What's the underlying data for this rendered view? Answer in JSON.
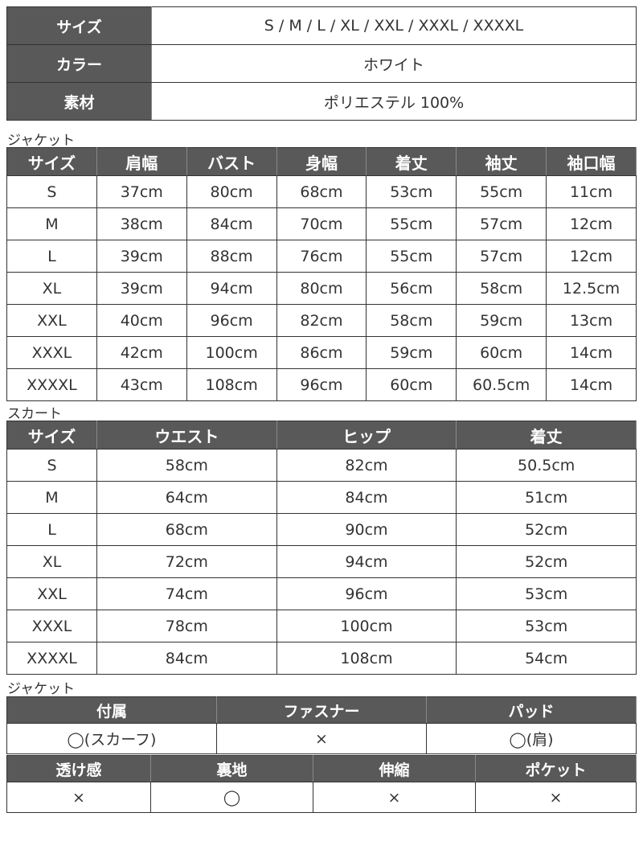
{
  "spec": [
    {
      "label": "サイズ",
      "value": "S / M / L / XL / XXL / XXXL / XXXXL"
    },
    {
      "label": "カラー",
      "value": "ホワイト"
    },
    {
      "label": "素材",
      "value": "ポリエステル 100%"
    }
  ],
  "jacket": {
    "title": "ジャケット",
    "headers": [
      "サイズ",
      "肩幅",
      "バスト",
      "身幅",
      "着丈",
      "袖丈",
      "袖口幅"
    ],
    "rows": [
      [
        "S",
        "37cm",
        "80cm",
        "68cm",
        "53cm",
        "55cm",
        "11cm"
      ],
      [
        "M",
        "38cm",
        "84cm",
        "70cm",
        "55cm",
        "57cm",
        "12cm"
      ],
      [
        "L",
        "39cm",
        "88cm",
        "76cm",
        "55cm",
        "57cm",
        "12cm"
      ],
      [
        "XL",
        "39cm",
        "94cm",
        "80cm",
        "56cm",
        "58cm",
        "12.5cm"
      ],
      [
        "XXL",
        "40cm",
        "96cm",
        "82cm",
        "58cm",
        "59cm",
        "13cm"
      ],
      [
        "XXXL",
        "42cm",
        "100cm",
        "86cm",
        "59cm",
        "60cm",
        "14cm"
      ],
      [
        "XXXXL",
        "43cm",
        "108cm",
        "96cm",
        "60cm",
        "60.5cm",
        "14cm"
      ]
    ]
  },
  "skirt": {
    "title": "スカート",
    "headers": [
      "サイズ",
      "ウエスト",
      "ヒップ",
      "着丈"
    ],
    "rows": [
      [
        "S",
        "58cm",
        "82cm",
        "50.5cm"
      ],
      [
        "M",
        "64cm",
        "84cm",
        "51cm"
      ],
      [
        "L",
        "68cm",
        "90cm",
        "52cm"
      ],
      [
        "XL",
        "72cm",
        "94cm",
        "52cm"
      ],
      [
        "XXL",
        "74cm",
        "96cm",
        "53cm"
      ],
      [
        "XXXL",
        "78cm",
        "100cm",
        "53cm"
      ],
      [
        "XXXXL",
        "84cm",
        "108cm",
        "54cm"
      ]
    ]
  },
  "features": {
    "title": "ジャケット",
    "row1_headers": [
      "付属",
      "ファスナー",
      "パッド"
    ],
    "row1_values": [
      "◯(スカーフ)",
      "×",
      "◯(肩)"
    ],
    "row2_headers": [
      "透け感",
      "裏地",
      "伸縮",
      "ポケット"
    ],
    "row2_values": [
      "×",
      "◯",
      "×",
      "×"
    ]
  },
  "colors": {
    "header_bg": "#595959",
    "header_text": "#ffffff"
  }
}
